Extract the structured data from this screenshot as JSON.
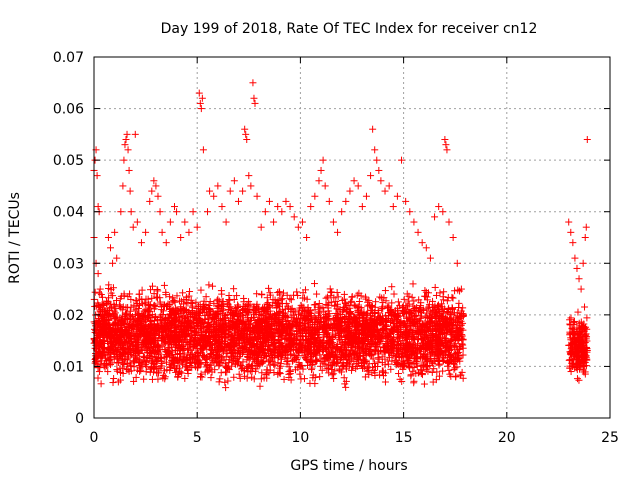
{
  "chart_data": {
    "type": "scatter",
    "title": "Day 199 of 2018, Rate Of TEC Index for receiver cn12",
    "xlabel": "GPS time / hours",
    "ylabel": "ROTI / TECUs",
    "xlim": [
      0,
      25
    ],
    "ylim": [
      0,
      0.07
    ],
    "xticks": [
      0,
      5,
      10,
      15,
      20,
      25
    ],
    "yticks": [
      0,
      0.01,
      0.02,
      0.03,
      0.04,
      0.05,
      0.06,
      0.07
    ],
    "xtick_labels": [
      "0",
      "5",
      "10",
      "15",
      "20",
      "25"
    ],
    "ytick_labels": [
      "0",
      "0.01",
      "0.02",
      "0.03",
      "0.04",
      "0.05",
      "0.06",
      "0.07"
    ],
    "grid": true,
    "marker": "+",
    "color": "#ff0000",
    "series": [
      {
        "points": [
          [
            0.0,
            0.048
          ],
          [
            0.05,
            0.05
          ],
          [
            0.1,
            0.052
          ],
          [
            0.15,
            0.047
          ],
          [
            0.2,
            0.041
          ],
          [
            0.25,
            0.04
          ],
          [
            0.0,
            0.035
          ],
          [
            0.1,
            0.03
          ],
          [
            0.2,
            0.028
          ],
          [
            0.3,
            0.025
          ],
          [
            0.4,
            0.022
          ],
          [
            0.5,
            0.02
          ],
          [
            0.6,
            0.018
          ],
          [
            0.7,
            0.035
          ],
          [
            0.8,
            0.033
          ],
          [
            0.9,
            0.03
          ],
          [
            1.0,
            0.036
          ],
          [
            1.1,
            0.031
          ],
          [
            1.3,
            0.04
          ],
          [
            1.4,
            0.045
          ],
          [
            1.45,
            0.05
          ],
          [
            1.5,
            0.053
          ],
          [
            1.55,
            0.054
          ],
          [
            1.6,
            0.055
          ],
          [
            1.65,
            0.052
          ],
          [
            1.7,
            0.048
          ],
          [
            1.75,
            0.044
          ],
          [
            1.8,
            0.04
          ],
          [
            1.9,
            0.037
          ],
          [
            2.0,
            0.055
          ],
          [
            2.1,
            0.038
          ],
          [
            2.3,
            0.034
          ],
          [
            2.5,
            0.036
          ],
          [
            2.7,
            0.042
          ],
          [
            2.8,
            0.044
          ],
          [
            2.9,
            0.046
          ],
          [
            3.0,
            0.045
          ],
          [
            3.1,
            0.043
          ],
          [
            3.2,
            0.04
          ],
          [
            3.3,
            0.036
          ],
          [
            3.5,
            0.034
          ],
          [
            3.7,
            0.038
          ],
          [
            3.9,
            0.041
          ],
          [
            4.0,
            0.04
          ],
          [
            4.2,
            0.035
          ],
          [
            4.4,
            0.038
          ],
          [
            4.6,
            0.036
          ],
          [
            4.8,
            0.04
          ],
          [
            5.0,
            0.037
          ],
          [
            5.1,
            0.063
          ],
          [
            5.15,
            0.061
          ],
          [
            5.2,
            0.06
          ],
          [
            5.25,
            0.062
          ],
          [
            5.3,
            0.052
          ],
          [
            5.5,
            0.04
          ],
          [
            5.6,
            0.044
          ],
          [
            5.8,
            0.043
          ],
          [
            6.0,
            0.045
          ],
          [
            6.2,
            0.041
          ],
          [
            6.4,
            0.038
          ],
          [
            6.6,
            0.044
          ],
          [
            6.8,
            0.046
          ],
          [
            7.0,
            0.042
          ],
          [
            7.2,
            0.044
          ],
          [
            7.3,
            0.056
          ],
          [
            7.35,
            0.055
          ],
          [
            7.4,
            0.054
          ],
          [
            7.5,
            0.047
          ],
          [
            7.6,
            0.045
          ],
          [
            7.7,
            0.065
          ],
          [
            7.75,
            0.062
          ],
          [
            7.8,
            0.061
          ],
          [
            7.9,
            0.043
          ],
          [
            8.1,
            0.037
          ],
          [
            8.3,
            0.04
          ],
          [
            8.5,
            0.042
          ],
          [
            8.7,
            0.038
          ],
          [
            8.9,
            0.041
          ],
          [
            9.1,
            0.04
          ],
          [
            9.3,
            0.042
          ],
          [
            9.5,
            0.041
          ],
          [
            9.7,
            0.039
          ],
          [
            9.9,
            0.037
          ],
          [
            10.1,
            0.038
          ],
          [
            10.3,
            0.035
          ],
          [
            10.5,
            0.041
          ],
          [
            10.7,
            0.043
          ],
          [
            10.9,
            0.046
          ],
          [
            11.0,
            0.048
          ],
          [
            11.1,
            0.05
          ],
          [
            11.2,
            0.045
          ],
          [
            11.4,
            0.042
          ],
          [
            11.6,
            0.038
          ],
          [
            11.8,
            0.036
          ],
          [
            12.0,
            0.04
          ],
          [
            12.2,
            0.042
          ],
          [
            12.4,
            0.044
          ],
          [
            12.6,
            0.046
          ],
          [
            12.8,
            0.045
          ],
          [
            13.0,
            0.041
          ],
          [
            13.2,
            0.043
          ],
          [
            13.4,
            0.047
          ],
          [
            13.5,
            0.056
          ],
          [
            13.6,
            0.052
          ],
          [
            13.7,
            0.05
          ],
          [
            13.8,
            0.048
          ],
          [
            13.9,
            0.046
          ],
          [
            14.1,
            0.044
          ],
          [
            14.3,
            0.045
          ],
          [
            14.5,
            0.041
          ],
          [
            14.7,
            0.043
          ],
          [
            14.9,
            0.05
          ],
          [
            15.1,
            0.042
          ],
          [
            15.3,
            0.04
          ],
          [
            15.5,
            0.038
          ],
          [
            15.7,
            0.036
          ],
          [
            15.9,
            0.034
          ],
          [
            16.1,
            0.033
          ],
          [
            16.3,
            0.031
          ],
          [
            16.5,
            0.039
          ],
          [
            16.7,
            0.041
          ],
          [
            16.9,
            0.04
          ],
          [
            17.0,
            0.054
          ],
          [
            17.05,
            0.053
          ],
          [
            17.1,
            0.052
          ],
          [
            17.2,
            0.038
          ],
          [
            17.4,
            0.035
          ],
          [
            17.6,
            0.03
          ],
          [
            17.8,
            0.025
          ],
          [
            17.9,
            0.02
          ],
          [
            23.0,
            0.038
          ],
          [
            23.1,
            0.036
          ],
          [
            23.2,
            0.034
          ],
          [
            23.3,
            0.031
          ],
          [
            23.4,
            0.029
          ],
          [
            23.5,
            0.027
          ],
          [
            23.6,
            0.025
          ],
          [
            23.7,
            0.03
          ],
          [
            23.8,
            0.035
          ],
          [
            23.85,
            0.037
          ],
          [
            23.9,
            0.054
          ]
        ]
      }
    ],
    "dense_band": [
      {
        "x_range": [
          0.0,
          17.9
        ],
        "y_range": [
          0.005,
          0.027
        ]
      },
      {
        "x_range": [
          23.0,
          23.9
        ],
        "y_range": [
          0.005,
          0.022
        ]
      }
    ]
  }
}
